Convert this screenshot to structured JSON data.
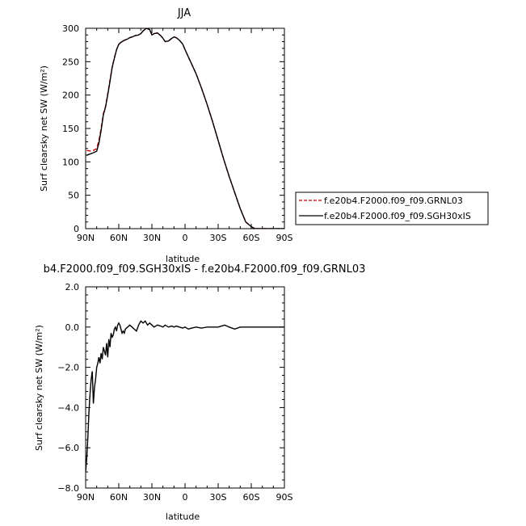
{
  "chart_data": [
    {
      "type": "line",
      "title": "JJA",
      "xlabel": "latitude",
      "ylabel": "Surf clearsky net SW (W/m²)",
      "xlim": [
        90,
        -90
      ],
      "ylim": [
        0,
        300
      ],
      "x_ticks": [
        90,
        60,
        30,
        0,
        -30,
        -60,
        -90
      ],
      "x_tick_labels": [
        "90N",
        "60N",
        "30N",
        "0",
        "30S",
        "60S",
        "90S"
      ],
      "y_ticks": [
        0,
        50,
        100,
        150,
        200,
        250,
        300
      ],
      "y_tick_labels": [
        "0",
        "50",
        "100",
        "150",
        "200",
        "250",
        "300"
      ],
      "legend_position": "right",
      "series": [
        {
          "name": "f.e20b4.F2000.f09_f09.GRNL03",
          "color": "#cc0000",
          "dash": "dashed",
          "x": [
            89,
            84,
            80,
            78,
            76,
            74,
            72,
            70,
            68,
            66,
            64,
            62,
            60,
            58,
            55,
            52,
            50,
            48,
            45,
            42,
            40,
            38,
            35,
            32,
            30,
            28,
            25,
            22,
            20,
            18,
            15,
            12,
            10,
            8,
            5,
            2,
            0,
            -5,
            -10,
            -15,
            -20,
            -25,
            -30,
            -35,
            -40,
            -45,
            -50,
            -55,
            -60,
            -62,
            -64,
            -66,
            -68,
            -70,
            -75,
            -80,
            -85,
            -90
          ],
          "y": [
            117,
            116,
            120,
            132,
            150,
            172,
            183,
            202,
            222,
            242,
            256,
            268,
            276,
            279,
            282,
            284,
            286,
            287,
            289,
            290,
            292,
            296,
            300,
            298,
            290,
            292,
            293,
            289,
            285,
            280,
            281,
            285,
            287,
            286,
            282,
            276,
            268,
            250,
            232,
            210,
            186,
            160,
            132,
            104,
            78,
            54,
            30,
            10,
            3,
            1,
            0,
            0,
            0,
            0,
            0,
            0,
            0,
            0
          ]
        },
        {
          "name": "f.e20b4.F2000.f09_f09.SGH30xIS",
          "color": "#000000",
          "dash": "solid",
          "x": [
            89,
            84,
            80,
            78,
            76,
            74,
            72,
            70,
            68,
            66,
            64,
            62,
            60,
            58,
            55,
            52,
            50,
            48,
            45,
            42,
            40,
            38,
            35,
            32,
            30,
            28,
            25,
            22,
            20,
            18,
            15,
            12,
            10,
            8,
            5,
            2,
            0,
            -5,
            -10,
            -15,
            -20,
            -25,
            -30,
            -35,
            -40,
            -45,
            -50,
            -55,
            -60,
            -62,
            -64,
            -66,
            -68,
            -70,
            -75,
            -80,
            -85,
            -90
          ],
          "y": [
            110,
            113,
            116,
            128,
            147,
            170,
            182,
            200,
            220,
            241,
            255,
            268,
            276,
            279,
            282,
            284,
            286,
            287,
            289,
            290,
            292,
            296,
            300,
            298,
            290,
            292,
            293,
            289,
            285,
            280,
            281,
            285,
            287,
            286,
            282,
            276,
            268,
            250,
            232,
            210,
            186,
            160,
            132,
            104,
            78,
            54,
            30,
            10,
            3,
            1,
            0,
            0,
            0,
            0,
            0,
            0,
            0,
            0
          ]
        }
      ]
    },
    {
      "type": "line",
      "title": "b4.F2000.f09_f09.SGH30xIS - f.e20b4.F2000.f09_f09.GRNL03",
      "xlabel": "latitude",
      "ylabel": "Surf clearsky net SW (W/m²)",
      "xlim": [
        90,
        -90
      ],
      "ylim": [
        -8,
        2
      ],
      "x_ticks": [
        90,
        60,
        30,
        0,
        -30,
        -60,
        -90
      ],
      "x_tick_labels": [
        "90N",
        "60N",
        "30N",
        "0",
        "30S",
        "60S",
        "90S"
      ],
      "y_ticks": [
        -8,
        -6,
        -4,
        -2,
        0,
        2
      ],
      "y_tick_labels": [
        "−8.0",
        "−6.0",
        "−4.0",
        "−2.0",
        "0.0",
        "2.0"
      ],
      "series": [
        {
          "color": "#000000",
          "dash": "solid",
          "x": [
            90,
            89,
            88,
            87,
            86,
            85,
            84,
            83,
            82,
            81,
            80,
            79,
            78,
            77,
            76,
            75,
            74,
            73,
            72,
            71,
            70,
            69,
            68,
            67,
            66,
            65,
            64,
            63,
            62,
            61,
            60,
            59,
            58,
            57,
            56,
            55,
            54,
            52,
            50,
            48,
            46,
            44,
            42,
            40,
            38,
            36,
            34,
            32,
            30,
            28,
            25,
            22,
            20,
            18,
            15,
            12,
            10,
            8,
            5,
            2,
            0,
            -3,
            -6,
            -10,
            -15,
            -20,
            -25,
            -30,
            -33,
            -36,
            -40,
            -45,
            -50,
            -55,
            -60,
            -70,
            -80,
            -90
          ],
          "y": [
            -7.2,
            -6.5,
            -5.5,
            -4.2,
            -3.3,
            -2.6,
            -2.2,
            -3.8,
            -3.0,
            -2.6,
            -2.0,
            -1.8,
            -1.5,
            -1.8,
            -1.3,
            -1.6,
            -1.0,
            -1.2,
            -1.4,
            -0.8,
            -1.5,
            -0.6,
            -1.0,
            -0.3,
            -0.5,
            -0.4,
            -0.1,
            0.0,
            -0.2,
            0.1,
            0.2,
            0.1,
            -0.1,
            -0.3,
            -0.2,
            -0.3,
            -0.1,
            0.0,
            0.1,
            0.0,
            -0.1,
            -0.2,
            0.1,
            0.3,
            0.2,
            0.3,
            0.1,
            0.2,
            0.1,
            0.0,
            0.1,
            0.05,
            0.0,
            0.1,
            0.0,
            0.05,
            0.0,
            0.05,
            0.0,
            -0.05,
            0.0,
            -0.1,
            -0.05,
            0.0,
            -0.05,
            0.0,
            0.0,
            0.0,
            0.05,
            0.1,
            0.0,
            -0.1,
            0.0,
            0.0,
            0.0,
            0.0,
            0.0,
            0.0
          ]
        }
      ]
    }
  ]
}
